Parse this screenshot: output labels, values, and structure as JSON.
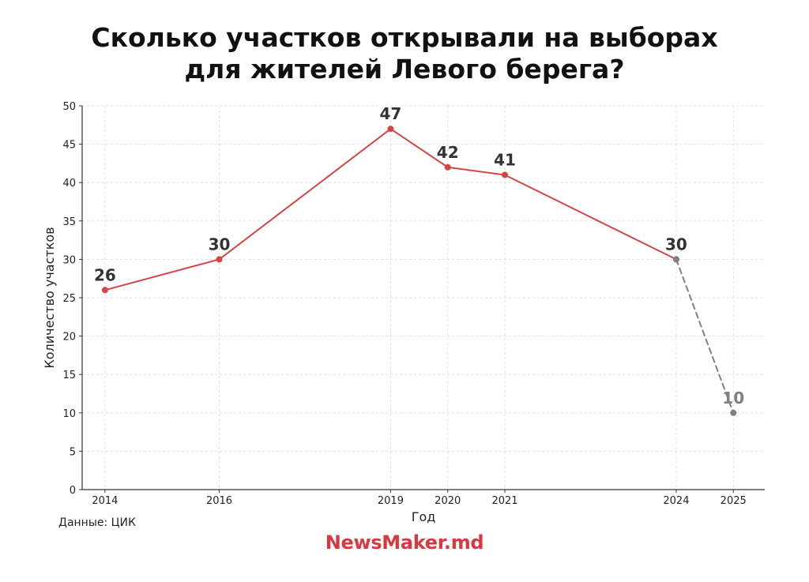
{
  "title": {
    "line1": "Сколько участков открывали на выборах",
    "line2": "для жителей Левого берега?"
  },
  "source": "Данные: ЦИК",
  "brand": "NewsMaker.md",
  "colors": {
    "actual": "#d64545",
    "projected": "#808080",
    "label": "#333333",
    "grid": "#d9d9d9"
  },
  "chart_data": {
    "type": "line",
    "title": "Сколько участков открывали на выборах для жителей Левого берега?",
    "xlabel": "Год",
    "ylabel": "Количество участков",
    "ylim": [
      0,
      50
    ],
    "yticks": [
      0,
      5,
      10,
      15,
      20,
      25,
      30,
      35,
      40,
      45,
      50
    ],
    "xticks": [
      2014,
      2016,
      2019,
      2020,
      2021,
      2024,
      2025
    ],
    "xlim": [
      2013.6,
      2025.55
    ],
    "grid": true,
    "series": [
      {
        "style": "solid",
        "color": "#d64545",
        "x": [
          2014,
          2016,
          2019,
          2020,
          2021,
          2024
        ],
        "y": [
          26,
          30,
          47,
          42,
          41,
          30
        ]
      },
      {
        "style": "dashed",
        "color": "#808080",
        "x": [
          2024,
          2025
        ],
        "y": [
          30,
          10
        ]
      }
    ],
    "data_labels": [
      {
        "x": 2014,
        "y": 26,
        "text": "26",
        "color": "#333333"
      },
      {
        "x": 2016,
        "y": 30,
        "text": "30",
        "color": "#333333"
      },
      {
        "x": 2019,
        "y": 47,
        "text": "47",
        "color": "#333333"
      },
      {
        "x": 2020,
        "y": 42,
        "text": "42",
        "color": "#333333"
      },
      {
        "x": 2021,
        "y": 41,
        "text": "41",
        "color": "#333333"
      },
      {
        "x": 2024,
        "y": 30,
        "text": "30",
        "color": "#333333"
      },
      {
        "x": 2025,
        "y": 10,
        "text": "10",
        "color": "#808080"
      }
    ]
  }
}
